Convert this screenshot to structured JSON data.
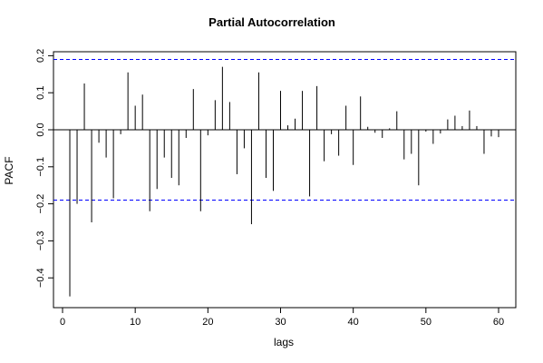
{
  "chart_data": {
    "type": "bar",
    "title": "Partial Autocorrelation",
    "xlabel": "lags",
    "ylabel": "PACF",
    "xlim": [
      0,
      60
    ],
    "ylim": [
      -0.45,
      0.2
    ],
    "x_ticks": [
      0,
      10,
      20,
      30,
      40,
      50,
      60
    ],
    "y_ticks": [
      -0.4,
      -0.3,
      -0.2,
      -0.1,
      0.0,
      0.1,
      0.2
    ],
    "y_tick_labels": [
      "−0.4",
      "−0.3",
      "−0.2",
      "−0.1",
      "0.0",
      "0.1",
      "0.2"
    ],
    "confidence_band": 0.19,
    "colors": {
      "bars": "#000000",
      "confidence": "#0000ff",
      "zero_line": "#000000"
    },
    "lags": [
      1,
      2,
      3,
      4,
      5,
      6,
      7,
      8,
      9,
      10,
      11,
      12,
      13,
      14,
      15,
      16,
      17,
      18,
      19,
      20,
      21,
      22,
      23,
      24,
      25,
      26,
      27,
      28,
      29,
      30,
      31,
      32,
      33,
      34,
      35,
      36,
      37,
      38,
      39,
      40,
      41,
      42,
      43,
      44,
      45,
      46,
      47,
      48,
      49,
      50,
      51,
      52,
      53,
      54,
      55,
      56,
      57,
      58,
      59,
      60
    ],
    "values": [
      -0.45,
      -0.2,
      0.125,
      -0.25,
      -0.035,
      -0.075,
      -0.185,
      -0.012,
      0.155,
      0.065,
      0.095,
      -0.22,
      -0.16,
      -0.075,
      -0.13,
      -0.15,
      -0.022,
      0.11,
      -0.22,
      -0.015,
      0.08,
      0.17,
      0.075,
      -0.12,
      -0.05,
      -0.255,
      0.155,
      -0.13,
      -0.165,
      0.105,
      0.012,
      0.03,
      0.105,
      -0.18,
      0.118,
      -0.085,
      -0.012,
      -0.07,
      0.065,
      -0.095,
      0.09,
      0.008,
      -0.008,
      -0.022,
      0.004,
      0.05,
      -0.08,
      -0.065,
      -0.15,
      -0.005,
      -0.038,
      -0.01,
      0.028,
      0.038,
      0.01,
      0.052,
      0.01,
      -0.065,
      -0.018,
      -0.02
    ]
  }
}
